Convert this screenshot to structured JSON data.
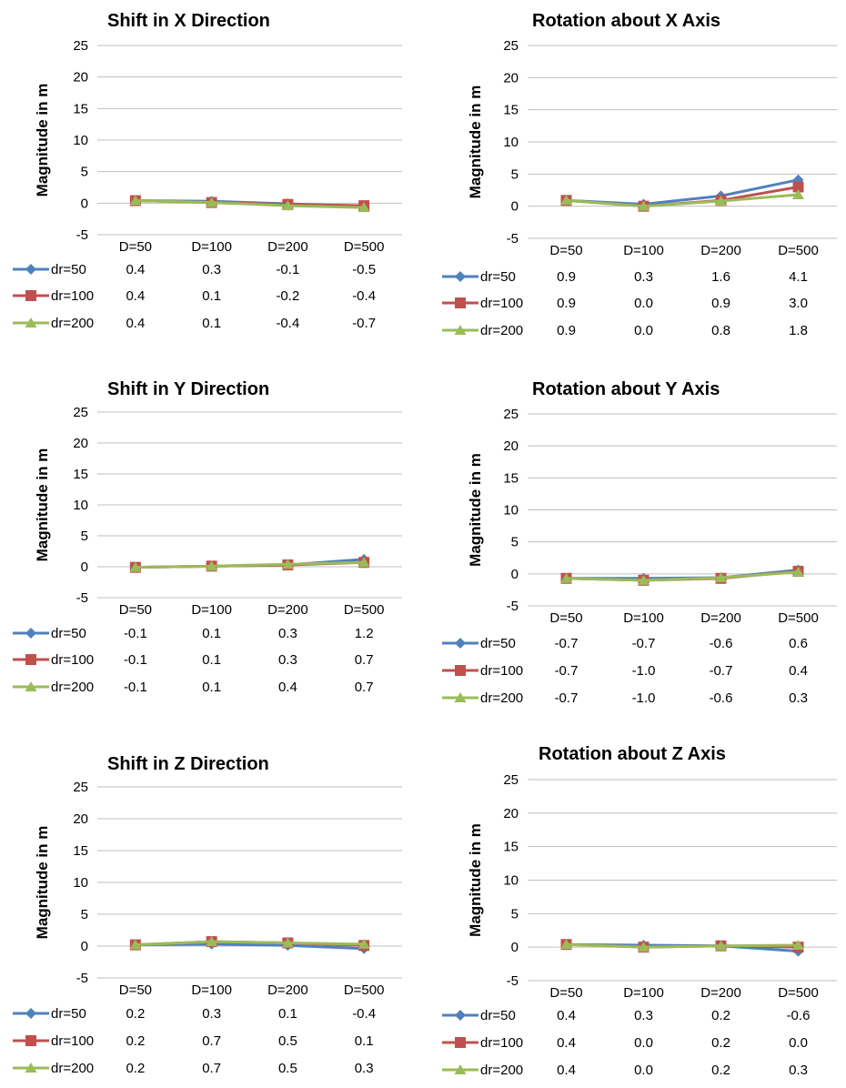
{
  "colors": {
    "dr=50": "#4F81BD",
    "dr=100": "#C0504D",
    "dr=200": "#9BBB59",
    "grid": "#BFBFBF",
    "text": "#000000"
  },
  "chart_data": [
    {
      "type": "line",
      "title": "Shift  in X Direction",
      "xlabel": "",
      "ylabel": "Magnitude in m",
      "ylim": [
        -5,
        25
      ],
      "yticks": [
        -5,
        0,
        5,
        10,
        15,
        20,
        25
      ],
      "grid": true,
      "legend": "data table below chart",
      "categories": [
        "D=50",
        "D=100",
        "D=200",
        "D=500"
      ],
      "series": [
        {
          "name": "dr=50",
          "values": [
            0.4,
            0.3,
            -0.1,
            -0.5
          ],
          "labels": [
            "0.4",
            "0.3",
            "-0.1",
            "-0.5"
          ]
        },
        {
          "name": "dr=100",
          "values": [
            0.4,
            0.1,
            -0.2,
            -0.4
          ],
          "labels": [
            "0.4",
            "0.1",
            "-0.2",
            "-0.4"
          ]
        },
        {
          "name": "dr=200",
          "values": [
            0.4,
            0.1,
            -0.4,
            -0.7
          ],
          "labels": [
            "0.4",
            "0.1",
            "-0.4",
            "-0.7"
          ]
        }
      ]
    },
    {
      "type": "line",
      "title": "Rotation about X Axis",
      "xlabel": "",
      "ylabel": "Magnitude in m",
      "ylim": [
        -5,
        25
      ],
      "yticks": [
        -5,
        0,
        5,
        10,
        15,
        20,
        25
      ],
      "grid": true,
      "legend": "data table below chart",
      "categories": [
        "D=50",
        "D=100",
        "D=200",
        "D=500"
      ],
      "series": [
        {
          "name": "dr=50",
          "values": [
            0.9,
            0.3,
            1.6,
            4.1
          ],
          "labels": [
            "0.9",
            "0.3",
            "1.6",
            "4.1"
          ]
        },
        {
          "name": "dr=100",
          "values": [
            0.9,
            0.0,
            0.9,
            3.0
          ],
          "labels": [
            "0.9",
            "0.0",
            "0.9",
            "3.0"
          ]
        },
        {
          "name": "dr=200",
          "values": [
            0.9,
            0.0,
            0.8,
            1.8
          ],
          "labels": [
            "0.9",
            "0.0",
            "0.8",
            "1.8"
          ]
        }
      ]
    },
    {
      "type": "line",
      "title": "Shift  in Y Direction",
      "xlabel": "",
      "ylabel": "Magnitude in m",
      "ylim": [
        -5,
        25
      ],
      "yticks": [
        -5,
        0,
        5,
        10,
        15,
        20,
        25
      ],
      "grid": true,
      "legend": "data table below chart",
      "categories": [
        "D=50",
        "D=100",
        "D=200",
        "D=500"
      ],
      "series": [
        {
          "name": "dr=50",
          "values": [
            -0.1,
            0.1,
            0.3,
            1.2
          ],
          "labels": [
            "-0.1",
            "0.1",
            "0.3",
            "1.2"
          ]
        },
        {
          "name": "dr=100",
          "values": [
            -0.1,
            0.1,
            0.3,
            0.7
          ],
          "labels": [
            "-0.1",
            "0.1",
            "0.3",
            "0.7"
          ]
        },
        {
          "name": "dr=200",
          "values": [
            -0.1,
            0.1,
            0.4,
            0.7
          ],
          "labels": [
            "-0.1",
            "0.1",
            "0.4",
            "0.7"
          ]
        }
      ]
    },
    {
      "type": "line",
      "title": "Rotation about Y Axis",
      "xlabel": "",
      "ylabel": "Magnitude in m",
      "ylim": [
        -5,
        25
      ],
      "yticks": [
        -5,
        0,
        5,
        10,
        15,
        20,
        25
      ],
      "grid": true,
      "legend": "data table below chart",
      "categories": [
        "D=50",
        "D=100",
        "D=200",
        "D=500"
      ],
      "series": [
        {
          "name": "dr=50",
          "values": [
            -0.7,
            -0.7,
            -0.6,
            0.6
          ],
          "labels": [
            "-0.7",
            "-0.7",
            "-0.6",
            "0.6"
          ]
        },
        {
          "name": "dr=100",
          "values": [
            -0.7,
            -1.0,
            -0.7,
            0.4
          ],
          "labels": [
            "-0.7",
            "-1.0",
            "-0.7",
            "0.4"
          ]
        },
        {
          "name": "dr=200",
          "values": [
            -0.7,
            -1.0,
            -0.6,
            0.3
          ],
          "labels": [
            "-0.7",
            "-1.0",
            "-0.6",
            "0.3"
          ]
        }
      ]
    },
    {
      "type": "line",
      "title": "Shift  in Z Direction",
      "xlabel": "",
      "ylabel": "Magnitude in m",
      "ylim": [
        -5,
        25
      ],
      "yticks": [
        -5,
        0,
        5,
        10,
        15,
        20,
        25
      ],
      "grid": true,
      "legend": "data table below chart",
      "categories": [
        "D=50",
        "D=100",
        "D=200",
        "D=500"
      ],
      "series": [
        {
          "name": "dr=50",
          "values": [
            0.2,
            0.3,
            0.1,
            -0.4
          ],
          "labels": [
            "0.2",
            "0.3",
            "0.1",
            "-0.4"
          ]
        },
        {
          "name": "dr=100",
          "values": [
            0.2,
            0.7,
            0.5,
            0.1
          ],
          "labels": [
            "0.2",
            "0.7",
            "0.5",
            "0.1"
          ]
        },
        {
          "name": "dr=200",
          "values": [
            0.2,
            0.7,
            0.5,
            0.3
          ],
          "labels": [
            "0.2",
            "0.7",
            "0.5",
            "0.3"
          ]
        }
      ]
    },
    {
      "type": "line",
      "title": "Rotation about Z Axis",
      "xlabel": "",
      "ylabel": "Magnitude in m",
      "ylim": [
        -5,
        25
      ],
      "yticks": [
        -5,
        0,
        5,
        10,
        15,
        20,
        25
      ],
      "grid": true,
      "legend": "data table below chart",
      "categories": [
        "D=50",
        "D=100",
        "D=200",
        "D=500"
      ],
      "series": [
        {
          "name": "dr=50",
          "values": [
            0.4,
            0.3,
            0.2,
            -0.6
          ],
          "labels": [
            "0.4",
            "0.3",
            "0.2",
            "-0.6"
          ]
        },
        {
          "name": "dr=100",
          "values": [
            0.4,
            0.0,
            0.2,
            0.0
          ],
          "labels": [
            "0.4",
            "0.0",
            "0.2",
            "0.0"
          ]
        },
        {
          "name": "dr=200",
          "values": [
            0.4,
            0.0,
            0.2,
            0.3
          ],
          "labels": [
            "0.4",
            "0.0",
            "0.2",
            "0.3"
          ]
        }
      ]
    }
  ]
}
